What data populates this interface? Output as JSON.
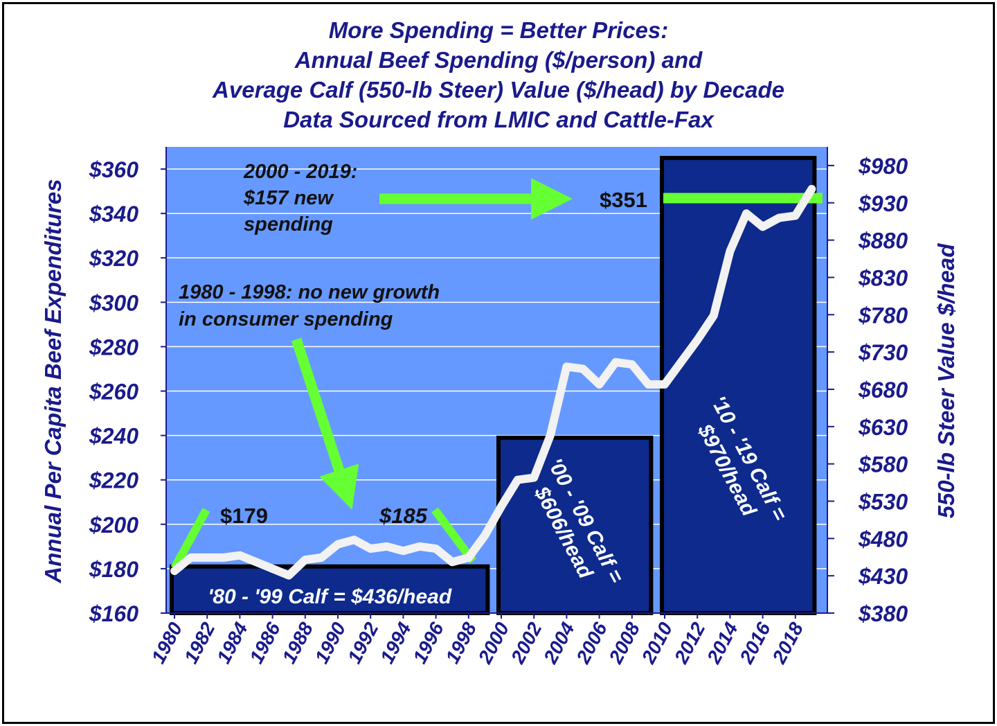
{
  "title_lines": [
    "More Spending = Better Prices:",
    "Annual Beef Spending ($/person) and",
    "Average Calf (550-lb Steer) Value ($/head) by Decade",
    "Data Sourced from LMIC and Cattle-Fax"
  ],
  "colors": {
    "plot_bg": "#6699ff",
    "bar_fill": "#0d2a8c",
    "line": "#f2f2f2",
    "arrow": "#66ff33",
    "text": "#1a1a8c"
  },
  "chart_data": {
    "type": "bar+line",
    "ylabel_left": "Annual Per Capita Beef Expenditures",
    "ylabel_right": "550-lb Steer Value $/head",
    "ylim_left": [
      160,
      370
    ],
    "ylim_right": [
      380,
      1005
    ],
    "left_ticks": [
      "$160",
      "$180",
      "$200",
      "$220",
      "$240",
      "$260",
      "$280",
      "$300",
      "$320",
      "$340",
      "$360"
    ],
    "right_ticks": [
      "$380",
      "$430",
      "$480",
      "$530",
      "$580",
      "$630",
      "$680",
      "$730",
      "$780",
      "$830",
      "$880",
      "$930",
      "$980"
    ],
    "x_ticks": [
      "1980",
      "1982",
      "1984",
      "1986",
      "1988",
      "1990",
      "1992",
      "1994",
      "1996",
      "1998",
      "2000",
      "2002",
      "2004",
      "2006",
      "2008",
      "2010",
      "2012",
      "2014",
      "2016",
      "2018"
    ],
    "bars": [
      {
        "start": 1980,
        "end": 1999,
        "value": 181,
        "label": "'80 - '99 Calf = $436/head"
      },
      {
        "start": 2000,
        "end": 2009,
        "value": 239,
        "label": "'00 - '09 Calf = $606/head"
      },
      {
        "start": 2010,
        "end": 2019,
        "value": 365,
        "label": "'10 - '19 Calf = $970/head"
      }
    ],
    "series": [
      {
        "x": [
          1980,
          1981,
          1982,
          1983,
          1984,
          1985,
          1986,
          1987,
          1988,
          1989,
          1990,
          1991,
          1992,
          1993,
          1994,
          1995,
          1996,
          1997,
          1998,
          1999,
          2000,
          2001,
          2002,
          2003,
          2004,
          2005,
          2006,
          2007,
          2008,
          2009,
          2010,
          2011,
          2012,
          2013,
          2014,
          2015,
          2016,
          2017,
          2018,
          2019
        ],
        "values": [
          179,
          185,
          185,
          185,
          186,
          183,
          180,
          177,
          184,
          185,
          191,
          193,
          189,
          190,
          188,
          190,
          189,
          183,
          185,
          195,
          208,
          220,
          221,
          240,
          271,
          270,
          263,
          273,
          272,
          263,
          263,
          273,
          283,
          294,
          323,
          340,
          334,
          338,
          339,
          351
        ]
      }
    ],
    "annotations": [
      "2000 - 2019:",
      "$157 new",
      "spending",
      "1980 - 1998:  no new growth",
      "in consumer spending",
      "$179",
      "$185",
      "$351"
    ]
  }
}
